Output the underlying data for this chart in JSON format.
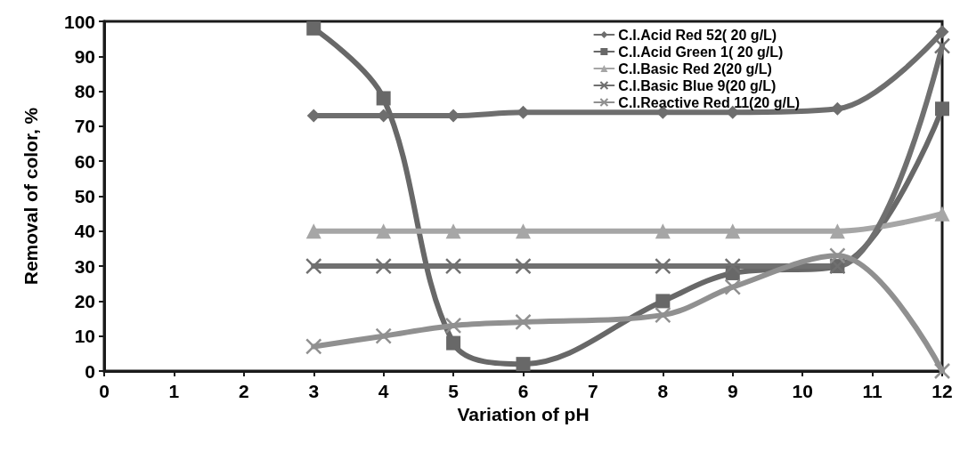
{
  "chart_data": {
    "type": "line",
    "xlabel": "Variation of pH",
    "ylabel": "Removal of color, %",
    "x": [
      3,
      4,
      5,
      6,
      8,
      9,
      10.5,
      12
    ],
    "series": [
      {
        "name": "C.I.Acid Red 52( 20 g/L)",
        "color": "#6e6e6e",
        "marker": "diamond",
        "values": [
          73,
          73,
          73,
          74,
          74,
          74,
          75,
          97
        ]
      },
      {
        "name": "C.I.Acid Green 1( 20 g/L)",
        "color": "#686868",
        "marker": "square",
        "values": [
          98,
          78,
          8,
          2,
          20,
          28,
          30,
          75
        ]
      },
      {
        "name": "C.I.Basic Red 2(20 g/L)",
        "color": "#a6a6a6",
        "marker": "triangle",
        "values": [
          40,
          40,
          40,
          40,
          40,
          40,
          40,
          45
        ]
      },
      {
        "name": "C.I.Basic Blue 9(20 g/L)",
        "color": "#707070",
        "marker": "cross",
        "values": [
          30,
          30,
          30,
          30,
          30,
          30,
          30,
          93
        ]
      },
      {
        "name": "C.I.Reactive Red 11(20 g/L)",
        "color": "#909090",
        "marker": "cross",
        "values": [
          7,
          10,
          13,
          14,
          16,
          24,
          33,
          0
        ]
      }
    ],
    "xlim": [
      0,
      12
    ],
    "xticks": [
      0,
      1,
      2,
      3,
      4,
      5,
      6,
      7,
      8,
      9,
      10,
      11,
      12
    ],
    "ylim": [
      0,
      100
    ],
    "yticks": [
      0,
      10,
      20,
      30,
      40,
      50,
      60,
      70,
      80,
      90,
      100
    ],
    "grid": false,
    "legend": "top right"
  }
}
